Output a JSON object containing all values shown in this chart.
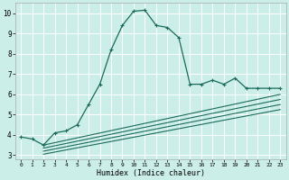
{
  "title": "",
  "xlabel": "Humidex (Indice chaleur)",
  "ylabel": "",
  "bg_color": "#cceee8",
  "grid_color": "#ffffff",
  "line_color": "#1a6b5a",
  "x_min": -0.5,
  "x_max": 23.5,
  "y_min": 2.8,
  "y_max": 10.5,
  "main_x": [
    0,
    1,
    2,
    3,
    4,
    5,
    6,
    7,
    8,
    9,
    10,
    11,
    12,
    13,
    14,
    15,
    16,
    17,
    18,
    19,
    20,
    21,
    22,
    23
  ],
  "main_y": [
    3.9,
    3.8,
    3.5,
    4.1,
    4.2,
    4.5,
    5.5,
    6.5,
    8.2,
    9.4,
    10.1,
    10.15,
    9.4,
    9.3,
    8.8,
    6.5,
    6.5,
    6.7,
    6.5,
    6.8,
    6.3,
    6.3,
    6.3,
    6.3
  ],
  "line1_x": [
    2,
    23
  ],
  "line1_y": [
    3.5,
    6.0
  ],
  "line2_x": [
    2,
    23
  ],
  "line2_y": [
    3.35,
    5.75
  ],
  "line3_x": [
    2,
    23
  ],
  "line3_y": [
    3.2,
    5.5
  ],
  "line4_x": [
    2,
    23
  ],
  "line4_y": [
    3.05,
    5.25
  ],
  "yticks": [
    3,
    4,
    5,
    6,
    7,
    8,
    9,
    10
  ],
  "xticks": [
    0,
    1,
    2,
    3,
    4,
    5,
    6,
    7,
    8,
    9,
    10,
    11,
    12,
    13,
    14,
    15,
    16,
    17,
    18,
    19,
    20,
    21,
    22,
    23
  ]
}
